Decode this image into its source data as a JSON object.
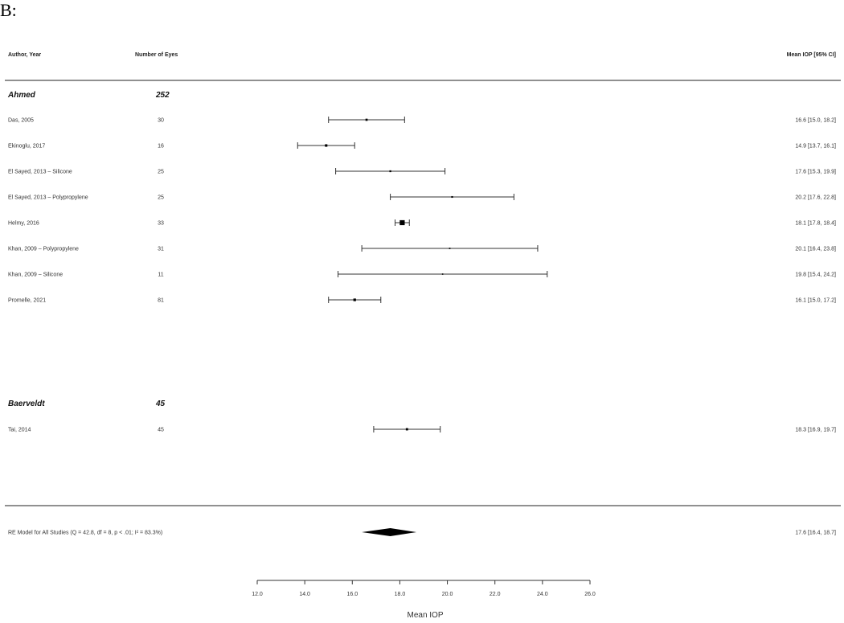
{
  "panel_label": "B:",
  "chart_data": {
    "type": "forest",
    "columns": {
      "author": "Author, Year",
      "n": "Number of Eyes",
      "estimate": "Mean IOP [95% CI]"
    },
    "groups": [
      {
        "name": "Ahmed",
        "total": "252",
        "studies": [
          {
            "label": "Das, 2005",
            "n": "30",
            "mean": 16.6,
            "lo": 15.0,
            "hi": 18.2,
            "ci_text": "16.6 [15.0, 18.2]"
          },
          {
            "label": "Ekinoglu, 2017",
            "n": "16",
            "mean": 14.9,
            "lo": 13.7,
            "hi": 16.1,
            "ci_text": "14.9 [13.7, 16.1]"
          },
          {
            "label": "El Sayed, 2013 – Silicone",
            "n": "25",
            "mean": 17.6,
            "lo": 15.3,
            "hi": 19.9,
            "ci_text": "17.6 [15.3, 19.9]"
          },
          {
            "label": "El Sayed, 2013 – Polypropylene",
            "n": "25",
            "mean": 20.2,
            "lo": 17.6,
            "hi": 22.8,
            "ci_text": "20.2 [17.6, 22.8]"
          },
          {
            "label": "Helmy, 2016",
            "n": "33",
            "mean": 18.1,
            "lo": 17.8,
            "hi": 18.4,
            "ci_text": "18.1 [17.8, 18.4]"
          },
          {
            "label": "Khan, 2009 – Polypropylene",
            "n": "31",
            "mean": 20.1,
            "lo": 16.4,
            "hi": 23.8,
            "ci_text": "20.1 [16.4, 23.8]"
          },
          {
            "label": "Khan, 2009 – Silicone",
            "n": "11",
            "mean": 19.8,
            "lo": 15.4,
            "hi": 24.2,
            "ci_text": "19.8 [15.4, 24.2]"
          },
          {
            "label": "Promelle, 2021",
            "n": "81",
            "mean": 16.1,
            "lo": 15.0,
            "hi": 17.2,
            "ci_text": "16.1 [15.0, 17.2]"
          }
        ]
      },
      {
        "name": "Baerveldt",
        "total": "45",
        "studies": [
          {
            "label": "Tai, 2014",
            "n": "45",
            "mean": 18.3,
            "lo": 16.9,
            "hi": 19.7,
            "ci_text": "18.3 [16.9, 19.7]"
          }
        ]
      }
    ],
    "overall": {
      "label": "RE Model for All Studies (Q = 42.8, df = 8, p < .01; I² = 83.3%)",
      "mean": 17.6,
      "lo": 16.4,
      "hi": 18.7,
      "ci_text": "17.6 [16.4, 18.7]"
    },
    "xaxis": {
      "label": "Mean IOP",
      "range": [
        12.0,
        26.0
      ],
      "ticks": [
        "12.0",
        "14.0",
        "16.0",
        "18.0",
        "20.0",
        "22.0",
        "24.0",
        "26.0"
      ]
    }
  }
}
